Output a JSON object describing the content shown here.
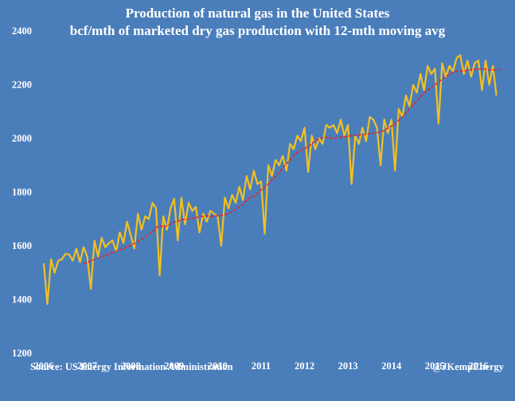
{
  "chart_data": {
    "type": "line",
    "title": "Production of  natural gas in the United States",
    "subtitle": "bcf/mth of  marketed dry gas production with 12-mth moving avg",
    "source": "Source: US Energy Information Administration",
    "credit": "@JKempEnergy",
    "xlim": [
      2006.0,
      2016.55
    ],
    "ylim": [
      1200,
      2400
    ],
    "x_ticks": [
      "2006",
      "2007",
      "2008",
      "2009",
      "2010",
      "2011",
      "2012",
      "2013",
      "2014",
      "2015",
      "2016"
    ],
    "y_ticks": [
      "1200",
      "1400",
      "1600",
      "1800",
      "2000",
      "2200",
      "2400"
    ],
    "grid": false,
    "x_start": "Jan 2006",
    "x_step": "1 month",
    "series": [
      {
        "color": "#f2c022",
        "style": "solid",
        "values": [
          1535,
          1383,
          1550,
          1500,
          1545,
          1550,
          1570,
          1568,
          1545,
          1590,
          1540,
          1595,
          1560,
          1440,
          1620,
          1560,
          1630,
          1595,
          1610,
          1620,
          1580,
          1650,
          1610,
          1690,
          1640,
          1590,
          1720,
          1660,
          1710,
          1700,
          1760,
          1740,
          1490,
          1710,
          1660,
          1740,
          1775,
          1620,
          1780,
          1680,
          1760,
          1730,
          1745,
          1650,
          1720,
          1690,
          1730,
          1720,
          1710,
          1600,
          1780,
          1740,
          1790,
          1760,
          1820,
          1770,
          1860,
          1810,
          1880,
          1830,
          1840,
          1645,
          1900,
          1860,
          1920,
          1900,
          1935,
          1880,
          1980,
          1960,
          2010,
          1990,
          2040,
          1875,
          2010,
          1960,
          2000,
          1980,
          2050,
          2040,
          2050,
          2020,
          2070,
          2010,
          2050,
          1830,
          2010,
          1980,
          2040,
          1990,
          2080,
          2070,
          2040,
          1900,
          2070,
          2020,
          2070,
          1880,
          2110,
          2080,
          2160,
          2120,
          2200,
          2170,
          2240,
          2180,
          2270,
          2240,
          2260,
          2055,
          2280,
          2230,
          2270,
          2250,
          2300,
          2310,
          2240,
          2290,
          2230,
          2280,
          2290,
          2180,
          2290,
          2200,
          2270,
          2160
        ]
      },
      {
        "color": "#e6232b",
        "style": "dashed",
        "start_index": 11,
        "values": [
          1535,
          1539,
          1543,
          1549,
          1554,
          1559,
          1565,
          1570,
          1575,
          1580,
          1585,
          1590,
          1596,
          1602,
          1609,
          1616,
          1624,
          1632,
          1643,
          1652,
          1666,
          1676,
          1670,
          1675,
          1681,
          1688,
          1692,
          1697,
          1699,
          1700,
          1702,
          1705,
          1708,
          1710,
          1711,
          1710,
          1711,
          1712,
          1714,
          1716,
          1720,
          1727,
          1736,
          1745,
          1755,
          1770,
          1780,
          1785,
          1795,
          1808,
          1820,
          1830,
          1845,
          1860,
          1875,
          1890,
          1905,
          1920,
          1935,
          1948,
          1955,
          1962,
          1970,
          1980,
          1990,
          1998,
          2003,
          2005,
          2002,
          2000,
          2003,
          2005,
          2006,
          2008,
          2010,
          2012,
          2013,
          2014,
          2016,
          2018,
          2020,
          2022,
          2025,
          2030,
          2038,
          2046,
          2055,
          2068,
          2080,
          2095,
          2110,
          2125,
          2140,
          2155,
          2170,
          2180,
          2190,
          2200,
          2210,
          2220,
          2230,
          2240,
          2245,
          2250,
          2250,
          2252,
          2254,
          2256,
          2258,
          2258,
          2260,
          2258,
          2255,
          2255,
          2255,
          2258
        ]
      }
    ]
  }
}
